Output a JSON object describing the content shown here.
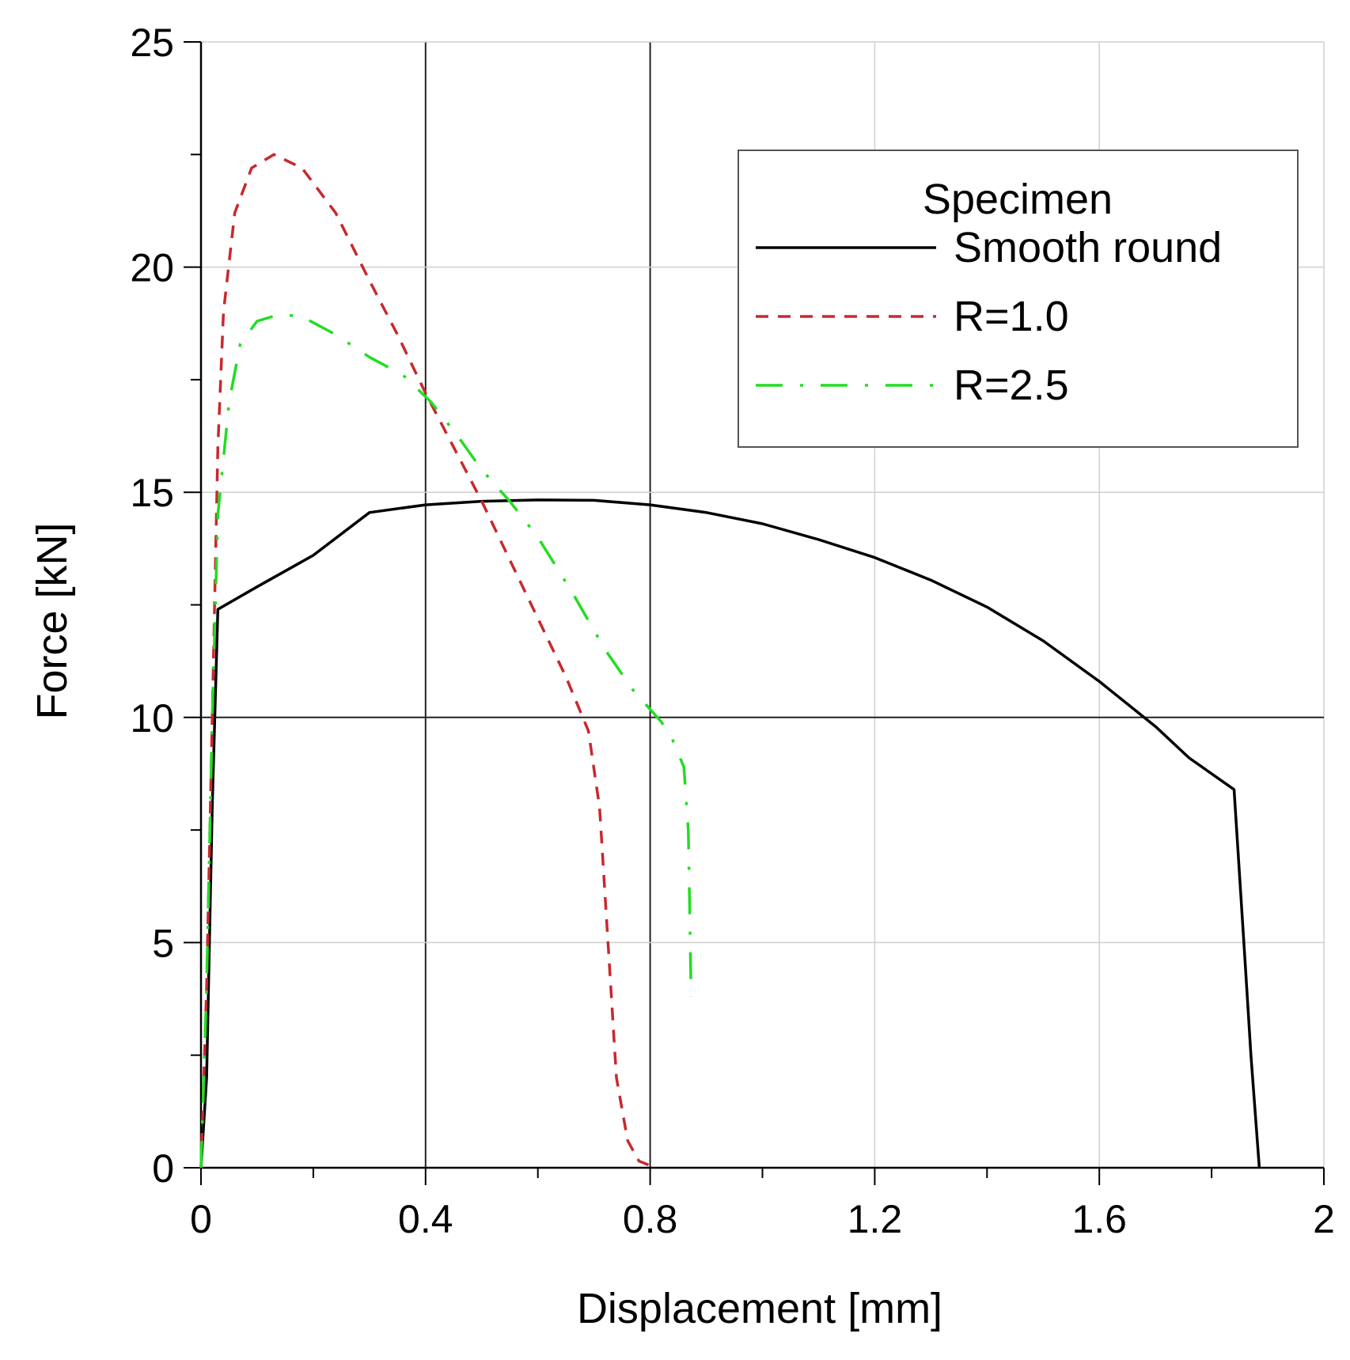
{
  "chart_data": {
    "type": "line",
    "title": "",
    "xlabel": "Displacement [mm]",
    "ylabel": "Force [kN]",
    "xlim": [
      0,
      2
    ],
    "ylim": [
      0,
      25
    ],
    "x_ticks": [
      0,
      0.4,
      0.8,
      1.2,
      1.6,
      2
    ],
    "x_tick_labels": [
      "0",
      "0.4",
      "0.8",
      "1.2",
      "1.6",
      "2"
    ],
    "x_minor_ticks": [
      0.2,
      0.6,
      1.0,
      1.4,
      1.8
    ],
    "y_ticks": [
      0,
      5,
      10,
      15,
      20,
      25
    ],
    "y_tick_labels": [
      "0",
      "5",
      "10",
      "15",
      "20",
      "25"
    ],
    "y_minor_ticks": [
      2.5,
      7.5,
      12.5,
      17.5,
      22.5
    ],
    "grid": true,
    "emphasized_gridlines": {
      "x": [
        0.4,
        0.8
      ],
      "y": [
        10
      ]
    },
    "legend": {
      "title": "Specimen",
      "placement": "top-right"
    },
    "series": [
      {
        "name": "Smooth round",
        "color": "#000000",
        "style": "solid",
        "points": [
          [
            0,
            0
          ],
          [
            0.01,
            2
          ],
          [
            0.02,
            8
          ],
          [
            0.03,
            12.4
          ],
          [
            0.1,
            12.9
          ],
          [
            0.2,
            13.6
          ],
          [
            0.3,
            14.55
          ],
          [
            0.4,
            14.72
          ],
          [
            0.5,
            14.8
          ],
          [
            0.6,
            14.83
          ],
          [
            0.7,
            14.82
          ],
          [
            0.8,
            14.72
          ],
          [
            0.9,
            14.55
          ],
          [
            1.0,
            14.3
          ],
          [
            1.1,
            13.95
          ],
          [
            1.2,
            13.55
          ],
          [
            1.3,
            13.05
          ],
          [
            1.4,
            12.45
          ],
          [
            1.5,
            11.7
          ],
          [
            1.6,
            10.8
          ],
          [
            1.7,
            9.8
          ],
          [
            1.76,
            9.1
          ],
          [
            1.84,
            8.4
          ],
          [
            1.86,
            4.5
          ],
          [
            1.87,
            2.5
          ],
          [
            1.885,
            0
          ]
        ]
      },
      {
        "name": "R=1.0",
        "color": "#c8282d",
        "style": "dashed",
        "points": [
          [
            0,
            0
          ],
          [
            0.01,
            4
          ],
          [
            0.02,
            10
          ],
          [
            0.03,
            16
          ],
          [
            0.04,
            19
          ],
          [
            0.06,
            21.2
          ],
          [
            0.09,
            22.2
          ],
          [
            0.13,
            22.5
          ],
          [
            0.18,
            22.2
          ],
          [
            0.24,
            21.2
          ],
          [
            0.3,
            19.7
          ],
          [
            0.35,
            18.5
          ],
          [
            0.4,
            17.2
          ],
          [
            0.45,
            16.0
          ],
          [
            0.5,
            14.8
          ],
          [
            0.55,
            13.5
          ],
          [
            0.6,
            12.2
          ],
          [
            0.65,
            10.9
          ],
          [
            0.69,
            9.7
          ],
          [
            0.71,
            8.0
          ],
          [
            0.72,
            6.0
          ],
          [
            0.73,
            4.0
          ],
          [
            0.74,
            2.0
          ],
          [
            0.76,
            0.6
          ],
          [
            0.78,
            0.15
          ],
          [
            0.8,
            0.05
          ]
        ]
      },
      {
        "name": "R=2.5",
        "color": "#22dd22",
        "style": "dashdot",
        "points": [
          [
            0,
            0
          ],
          [
            0.01,
            4
          ],
          [
            0.02,
            10
          ],
          [
            0.03,
            14.5
          ],
          [
            0.05,
            17.0
          ],
          [
            0.07,
            18.3
          ],
          [
            0.1,
            18.8
          ],
          [
            0.14,
            18.95
          ],
          [
            0.18,
            18.9
          ],
          [
            0.24,
            18.5
          ],
          [
            0.3,
            18.0
          ],
          [
            0.36,
            17.6
          ],
          [
            0.41,
            17.0
          ],
          [
            0.46,
            16.2
          ],
          [
            0.5,
            15.5
          ],
          [
            0.55,
            14.8
          ],
          [
            0.6,
            14.0
          ],
          [
            0.66,
            12.8
          ],
          [
            0.72,
            11.5
          ],
          [
            0.77,
            10.6
          ],
          [
            0.82,
            9.9
          ],
          [
            0.84,
            9.5
          ],
          [
            0.86,
            8.9
          ],
          [
            0.868,
            7.5
          ],
          [
            0.87,
            6.0
          ],
          [
            0.872,
            4.5
          ],
          [
            0.873,
            3.8
          ]
        ]
      }
    ]
  }
}
